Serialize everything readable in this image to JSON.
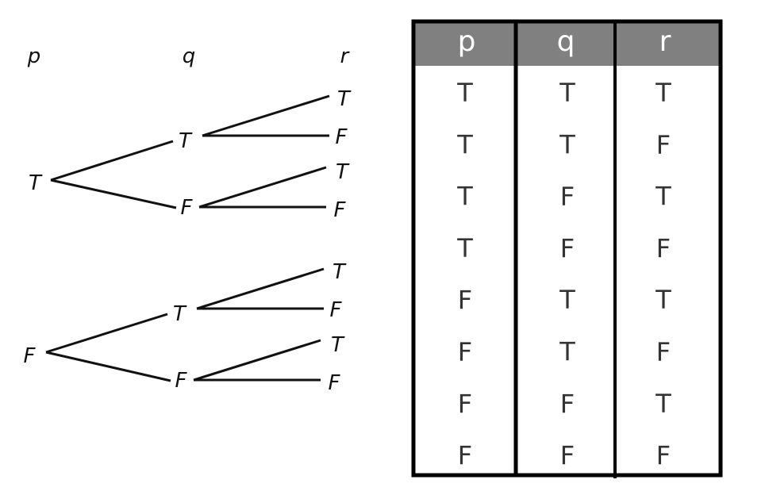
{
  "tree": {
    "headers": [
      "p",
      "q",
      "r"
    ],
    "p_nodes": [
      "T",
      "F"
    ],
    "q_nodes": [
      "T",
      "F",
      "T",
      "F"
    ],
    "r_nodes": [
      "T",
      "F",
      "T",
      "F",
      "T",
      "F",
      "T",
      "F"
    ]
  },
  "table": {
    "headers": [
      "p",
      "q",
      "r"
    ],
    "rows": [
      [
        "T",
        "T",
        "T"
      ],
      [
        "T",
        "T",
        "F"
      ],
      [
        "T",
        "F",
        "T"
      ],
      [
        "T",
        "F",
        "F"
      ],
      [
        "F",
        "T",
        "T"
      ],
      [
        "F",
        "T",
        "F"
      ],
      [
        "F",
        "F",
        "T"
      ],
      [
        "F",
        "F",
        "F"
      ]
    ],
    "header_color": "#808080"
  }
}
